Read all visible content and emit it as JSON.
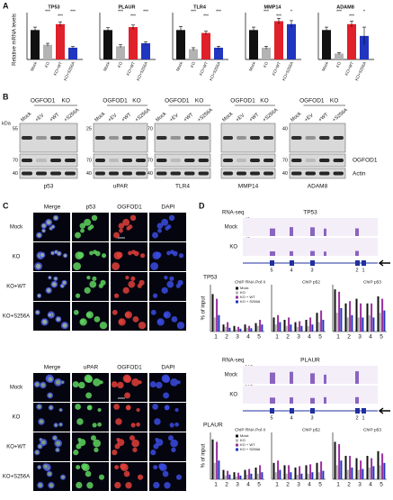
{
  "A": {
    "label": "A",
    "ylabel": "Relative mRNA levels",
    "categories": [
      "Mock",
      "KO",
      "KO+WT",
      "KO+S256A"
    ],
    "colors": [
      "#111111",
      "#b3b3b3",
      "#e0202a",
      "#2035c0"
    ],
    "charts": [
      {
        "title": "TP53",
        "values": [
          1.0,
          0.5,
          1.2,
          0.4
        ],
        "errors": [
          0.1,
          0.05,
          0.08,
          0.04
        ],
        "ylim": [
          0,
          1.5
        ],
        "stars": [
          "***",
          "***",
          "***"
        ]
      },
      {
        "title": "PLAUR",
        "values": [
          1.0,
          0.45,
          1.1,
          0.55
        ],
        "errors": [
          0.08,
          0.05,
          0.07,
          0.05
        ],
        "ylim": [
          0,
          1.5
        ],
        "stars": [
          "***",
          "***",
          "***"
        ]
      },
      {
        "title": "TLR4",
        "values": [
          1.0,
          0.35,
          0.9,
          0.4
        ],
        "errors": [
          0.12,
          0.05,
          0.06,
          0.05
        ],
        "ylim": [
          0,
          1.5
        ],
        "stars": [
          "***",
          "***",
          "***"
        ]
      },
      {
        "title": "MMP14",
        "values": [
          1.0,
          0.4,
          1.3,
          1.2
        ],
        "errors": [
          0.1,
          0.05,
          0.1,
          0.12
        ],
        "ylim": [
          0,
          1.5
        ],
        "stars": [
          "***",
          "***",
          "*"
        ]
      },
      {
        "title": "ADAM8",
        "values": [
          1.0,
          0.2,
          1.2,
          0.8
        ],
        "errors": [
          0.1,
          0.03,
          0.1,
          0.3
        ],
        "ylim": [
          0,
          1.5
        ],
        "stars": [
          "***",
          "***",
          "*"
        ]
      }
    ]
  },
  "B": {
    "label": "B",
    "group": "OGFOD1",
    "group2": "KO",
    "kda": "kDa",
    "lanes": [
      "Mock",
      "+EV",
      "+WT",
      "+S256A"
    ],
    "blots": [
      {
        "name": "p53",
        "markers": [
          55,
          70,
          40
        ]
      },
      {
        "name": "uPAR",
        "markers": [
          25,
          70,
          40
        ]
      },
      {
        "name": "TLR4",
        "markers": [
          70,
          70,
          40
        ]
      },
      {
        "name": "MMP14"
      },
      {
        "name": "ADAM8",
        "markers": [
          40,
          70,
          40
        ]
      }
    ],
    "right_labels": [
      "OGFOD1",
      "Actin"
    ]
  },
  "C": {
    "label": "C",
    "blocks": [
      {
        "columns": [
          "Merge",
          "p53",
          "OGFOD1",
          "DAPI"
        ]
      },
      {
        "columns": [
          "Merge",
          "uPAR",
          "OGFOD1",
          "DAPI"
        ]
      }
    ],
    "rows": [
      "Mock",
      "KO",
      "KO+WT",
      "KO+S256A"
    ]
  },
  "D": {
    "label": "D",
    "tracks": [
      {
        "gene": "TP53",
        "label": "RNA-seq",
        "rows": [
          "Mock",
          "KO"
        ],
        "scales": [
          43,
          43
        ],
        "exons": [
          "5",
          "4",
          "3",
          "2",
          "1"
        ]
      },
      {
        "gene": "PLAUR",
        "label": "RNA-seq",
        "rows": [
          "Mock",
          "KO"
        ],
        "scales": [
          215,
          215
        ],
        "exons": [
          "5",
          "4",
          "3",
          "2",
          "1"
        ]
      }
    ],
    "chip": [
      {
        "title": "TP53",
        "ylabel": "% of input",
        "categories": [
          "1",
          "2",
          "3",
          "4",
          "5"
        ],
        "ylim": [
          0,
          1
        ],
        "series": [
          {
            "name": "Mock",
            "color": "#111111"
          },
          {
            "name": "KO",
            "color": "#b3b3b3"
          },
          {
            "name": "KO + WT",
            "color": "#9a2fa0"
          },
          {
            "name": "KO + S256A",
            "color": "#2035c0"
          }
        ],
        "panels": [
          {
            "title": "ChIP RNA Pol II",
            "values": [
              [
                0.8,
                0.15,
                0.12,
                0.15,
                0.18
              ],
              [
                0.3,
                0.1,
                0.05,
                0.08,
                0.12
              ],
              [
                0.7,
                0.2,
                0.1,
                0.12,
                0.25
              ],
              [
                0.35,
                0.08,
                0.06,
                0.07,
                0.15
              ]
            ]
          },
          {
            "title": "ChIP p52",
            "values": [
              [
                0.3,
                0.25,
                0.2,
                0.25,
                0.4
              ],
              [
                0.15,
                0.12,
                0.1,
                0.12,
                0.2
              ],
              [
                0.35,
                0.3,
                0.22,
                0.3,
                0.45
              ],
              [
                0.2,
                0.15,
                0.12,
                0.15,
                0.25
              ]
            ]
          },
          {
            "title": "ChIP p53",
            "values": [
              [
                0.9,
                0.6,
                0.7,
                0.6,
                0.75
              ],
              [
                0.4,
                0.3,
                0.3,
                0.35,
                0.4
              ],
              [
                0.85,
                0.65,
                0.6,
                0.6,
                0.7
              ],
              [
                0.5,
                0.35,
                0.3,
                0.3,
                0.45
              ]
            ]
          }
        ]
      },
      {
        "title": "PLAUR",
        "ylabel": "% of input",
        "categories": [
          "1",
          "2",
          "3",
          "4",
          "5"
        ],
        "ylim": [
          0,
          1
        ],
        "series": [
          {
            "name": "Mock",
            "color": "#111111"
          },
          {
            "name": "KO",
            "color": "#b3b3b3"
          },
          {
            "name": "KO + WT",
            "color": "#9a2fa0"
          },
          {
            "name": "KO + S256A",
            "color": "#2035c0"
          }
        ],
        "panels": [
          {
            "title": "ChIP RNA Pol II",
            "values": [
              [
                0.85,
                0.2,
                0.15,
                0.2,
                0.25
              ],
              [
                0.35,
                0.08,
                0.06,
                0.1,
                0.12
              ],
              [
                0.8,
                0.18,
                0.14,
                0.22,
                0.3
              ],
              [
                0.4,
                0.1,
                0.08,
                0.12,
                0.15
              ]
            ]
          },
          {
            "title": "ChIP p52",
            "values": [
              [
                0.35,
                0.3,
                0.25,
                0.3,
                0.35
              ],
              [
                0.15,
                0.12,
                0.1,
                0.12,
                0.15
              ],
              [
                0.4,
                0.3,
                0.28,
                0.32,
                0.38
              ],
              [
                0.2,
                0.15,
                0.12,
                0.15,
                0.18
              ]
            ]
          },
          {
            "title": "ChIP p53",
            "values": [
              [
                0.8,
                0.5,
                0.45,
                0.5,
                0.6
              ],
              [
                0.3,
                0.2,
                0.2,
                0.25,
                0.3
              ],
              [
                0.75,
                0.5,
                0.4,
                0.45,
                0.55
              ],
              [
                0.4,
                0.25,
                0.22,
                0.28,
                0.35
              ]
            ]
          }
        ]
      }
    ]
  }
}
